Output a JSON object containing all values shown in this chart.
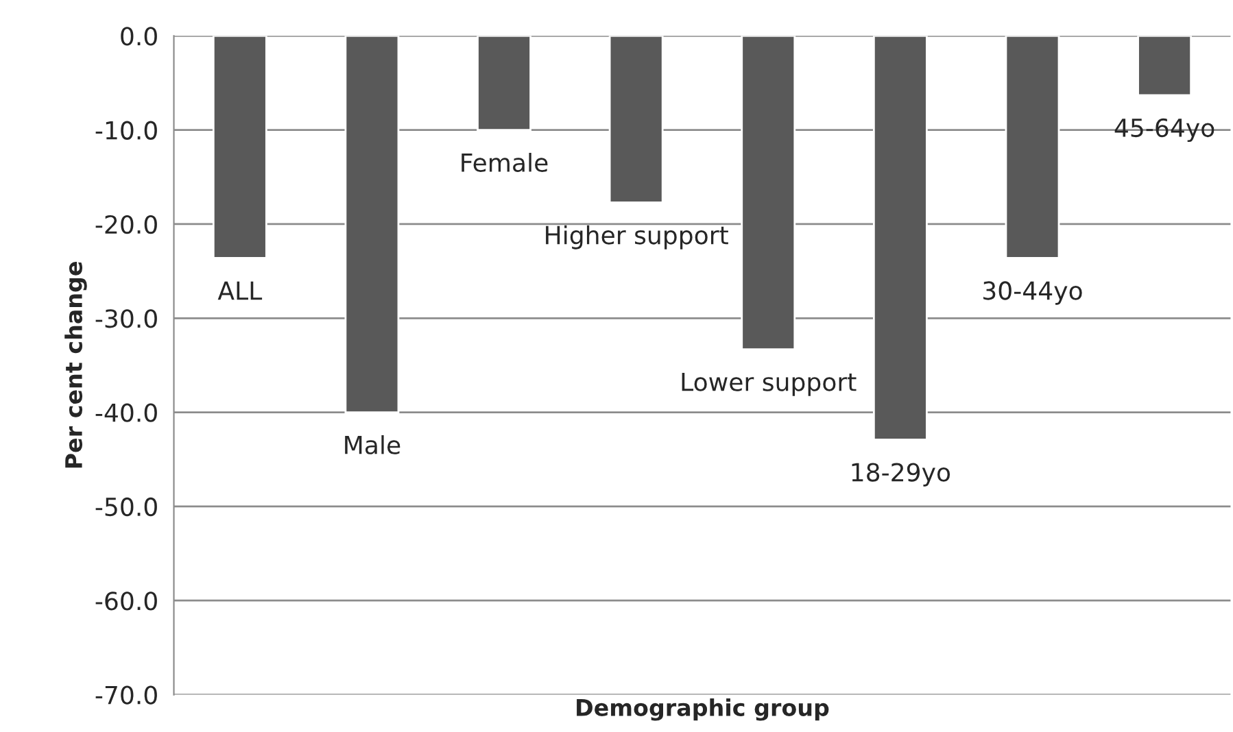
{
  "chart_data": {
    "type": "bar",
    "xlabel": "Demographic group",
    "ylabel": "Per cent change",
    "categories": [
      "ALL",
      "Male",
      "Female",
      "Higher support",
      "Lower support",
      "18-29yo",
      "30-44yo",
      "45-64yo"
    ],
    "values": [
      -23.6,
      -40.0,
      -10.0,
      -17.7,
      -33.3,
      -42.9,
      -23.6,
      -6.3
    ],
    "color": "#595959",
    "ylim": [
      -70,
      0
    ],
    "yticks": [
      {
        "value": 0,
        "label": "0.0"
      },
      {
        "value": -10,
        "label": "-10.0"
      },
      {
        "value": -20,
        "label": "-20.0"
      },
      {
        "value": -30,
        "label": "-30.0"
      },
      {
        "value": -40,
        "label": "-40.0"
      },
      {
        "value": -50,
        "label": "-50.0"
      },
      {
        "value": -60,
        "label": "-60.0"
      },
      {
        "value": -70,
        "label": "-70.0"
      }
    ],
    "grid": "y"
  }
}
